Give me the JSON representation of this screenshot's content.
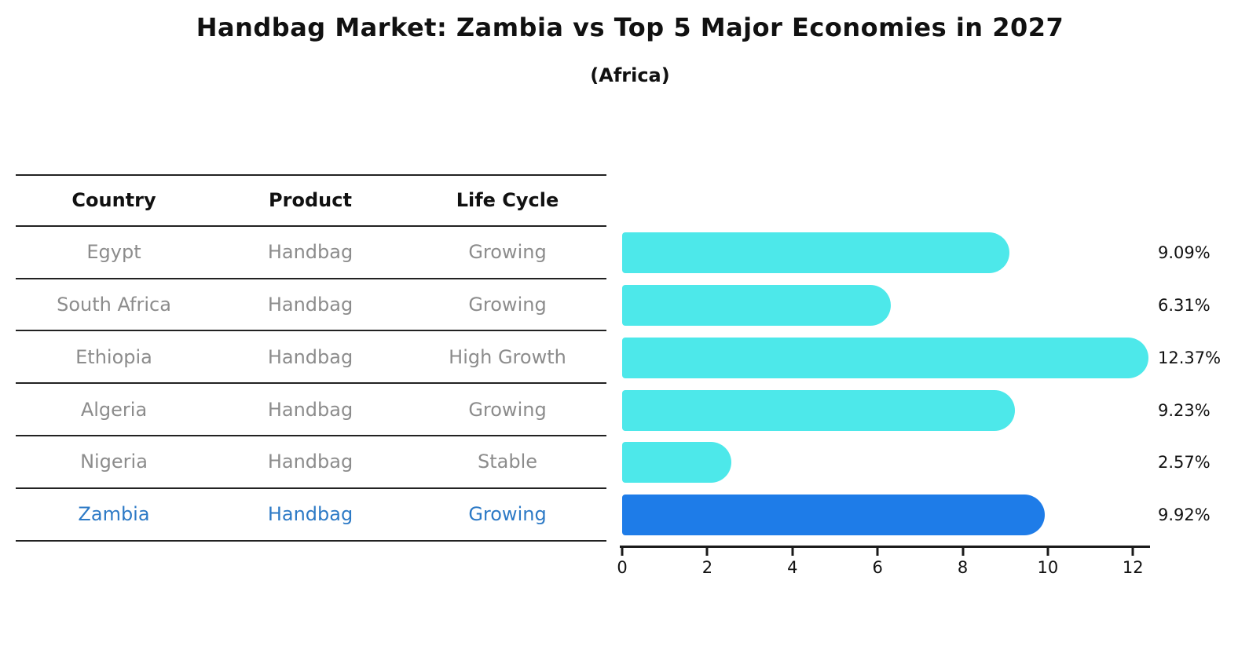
{
  "chart_data": {
    "type": "bar",
    "orientation": "horizontal",
    "title": "Handbag Market: Zambia vs Top 5 Major Economies in 2027",
    "subtitle": "(Africa)",
    "categories": [
      "Egypt",
      "South Africa",
      "Ethiopia",
      "Algeria",
      "Nigeria",
      "Zambia"
    ],
    "values": [
      9.09,
      6.31,
      12.37,
      9.23,
      2.57,
      9.92
    ],
    "value_labels": [
      "9.09%",
      "6.31%",
      "12.37%",
      "9.23%",
      "2.57%",
      "9.92%"
    ],
    "x_ticks": [
      0,
      2,
      4,
      6,
      8,
      10,
      12
    ],
    "xlim": [
      0,
      12.4
    ],
    "grid": false,
    "legend": "none",
    "highlight_category": "Zambia",
    "colors": {
      "bar": "#4de8ea",
      "highlight_bar": "#1e7ce8",
      "highlight_text": "#2d7ac6",
      "row_text": "#8c8c8c",
      "axis": "#1a1a1a"
    }
  },
  "table": {
    "columns": [
      "Country",
      "Product",
      "Life Cycle"
    ],
    "rows": [
      {
        "country": "Egypt",
        "product": "Handbag",
        "life_cycle": "Growing",
        "highlighted": false
      },
      {
        "country": "South Africa",
        "product": "Handbag",
        "life_cycle": "Growing",
        "highlighted": false
      },
      {
        "country": "Ethiopia",
        "product": "Handbag",
        "life_cycle": "High Growth",
        "highlighted": false
      },
      {
        "country": "Algeria",
        "product": "Handbag",
        "life_cycle": "Growing",
        "highlighted": false
      },
      {
        "country": "Nigeria",
        "product": "Handbag",
        "life_cycle": "Stable",
        "highlighted": false
      },
      {
        "country": "Zambia",
        "product": "Handbag",
        "life_cycle": "Growing",
        "highlighted": true
      }
    ]
  }
}
